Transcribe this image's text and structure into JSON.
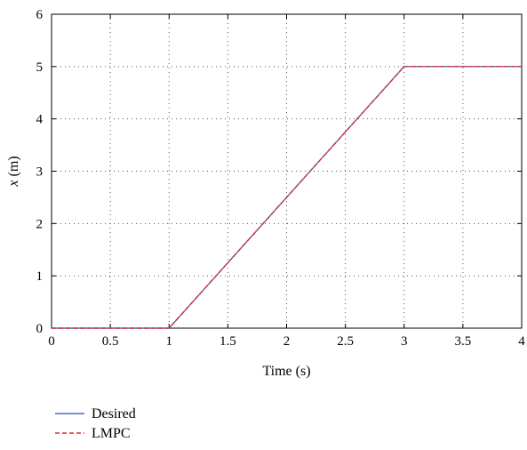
{
  "chart_data": {
    "type": "line",
    "title": "",
    "xlabel": "Time (s)",
    "ylabel_var": "x",
    "ylabel_unit": " (m)",
    "xlim": [
      0,
      4
    ],
    "ylim": [
      0,
      6
    ],
    "xticks": [
      0,
      0.5,
      1,
      1.5,
      2,
      2.5,
      3,
      3.5,
      4
    ],
    "xtick_labels": [
      "0",
      "0.5",
      "1",
      "1.5",
      "2",
      "2.5",
      "3",
      "3.5",
      "4"
    ],
    "yticks": [
      0,
      1,
      2,
      3,
      4,
      5,
      6
    ],
    "ytick_labels": [
      "0",
      "1",
      "2",
      "3",
      "4",
      "5",
      "6"
    ],
    "grid": true,
    "legend_position": "bottom-left, below plot",
    "series": [
      {
        "name": "Desired",
        "color": "#4a6fb5",
        "style": "solid",
        "x": [
          0,
          1,
          3,
          4
        ],
        "y": [
          0,
          0,
          5,
          5
        ]
      },
      {
        "name": "LMPC",
        "color": "#e8262b",
        "style": "dashed",
        "x": [
          0,
          1,
          3,
          4
        ],
        "y": [
          0,
          0,
          5,
          5
        ]
      }
    ]
  }
}
